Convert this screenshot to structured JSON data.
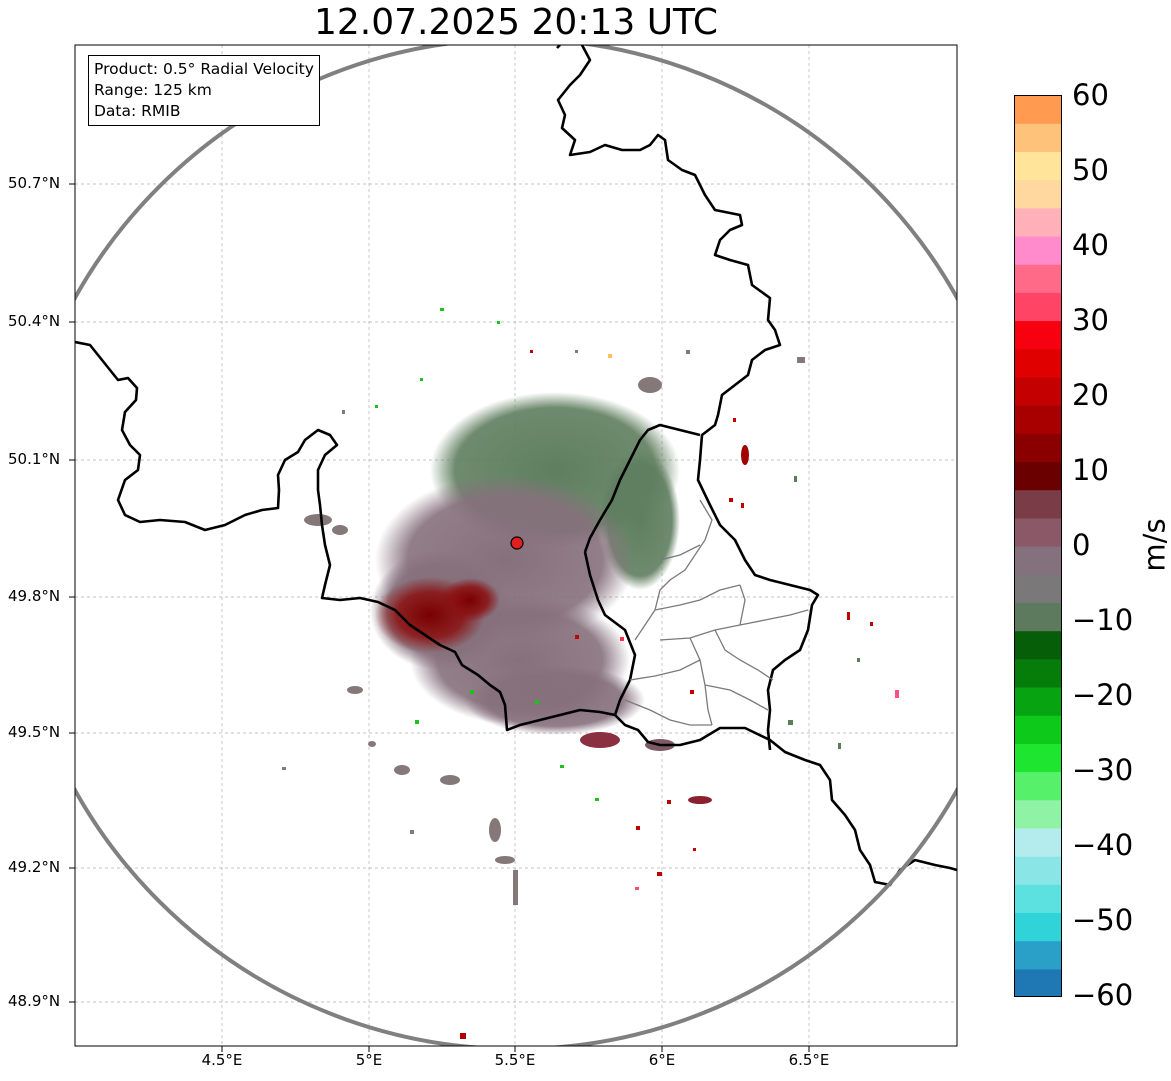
{
  "title": "12.07.2025 20:13 UTC",
  "info_box": {
    "product": "Product: 0.5° Radial Velocity",
    "range": "Range: 125 km",
    "data": "Data: RMIB"
  },
  "lat_ticks": [
    "50.7°N",
    "50.4°N",
    "50.1°N",
    "49.8°N",
    "49.5°N",
    "49.2°N",
    "48.9°N"
  ],
  "lon_ticks": [
    "4.5°E",
    "5°E",
    "5.5°E",
    "6°E",
    "6.5°E"
  ],
  "colorbar": {
    "unit": "m/s",
    "ticks": [
      "60",
      "50",
      "40",
      "30",
      "20",
      "10",
      "0",
      "−10",
      "−20",
      "−30",
      "−40",
      "−50",
      "−60"
    ],
    "stops": [
      "#1f77b4",
      "#2a9fc8",
      "#2fd3d8",
      "#5ce0e0",
      "#8ae6e6",
      "#b4ecee",
      "#8ff2a5",
      "#56f06a",
      "#1ee630",
      "#0cc91a",
      "#07a310",
      "#067d0a",
      "#075e08",
      "#5e7a5e",
      "#7a7878",
      "#85707e",
      "#8a5866",
      "#7a3d48",
      "#6b0000",
      "#8a0000",
      "#a80000",
      "#c40000",
      "#e00000",
      "#f70010",
      "#ff4466",
      "#ff6a88",
      "#ff8acc",
      "#ffb0b8",
      "#ffd8a0",
      "#ffe49a",
      "#ffc27a",
      "#ff9a50"
    ]
  },
  "colors": {
    "border": "#000000",
    "range_ring": "#808080",
    "radar_site": "#e02020",
    "echo_positive": "#8b0000",
    "echo_neutral": "#856e78",
    "echo_negative_weak": "#5a7d5a"
  },
  "radar_site_name": ""
}
